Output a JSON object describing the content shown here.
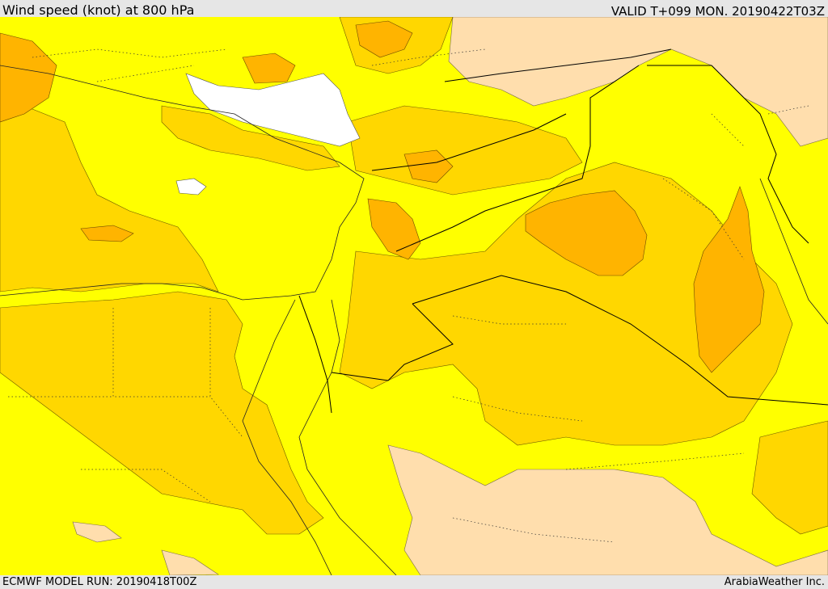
{
  "header": {
    "title": "Wind speed (knot) at 800 hPa",
    "valid": "VALID T+099 MON. 20190422T03Z"
  },
  "footer": {
    "model_run": "ECMWF MODEL RUN: 20190418T00Z",
    "credit": "ArabiaWeather Inc."
  },
  "colors": {
    "band_0_10": "#ffffff",
    "band_10_20": "#ffff00",
    "band_20_30": "#ffd700",
    "band_30_40": "#ffb400",
    "band_low_alt": "#ffdead",
    "frame": "#e6e6e6",
    "border": "#000000"
  }
}
